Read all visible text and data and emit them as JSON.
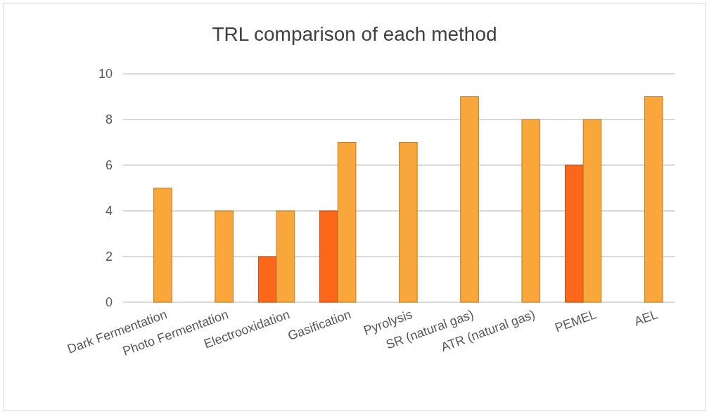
{
  "chart_data": {
    "type": "bar",
    "title": "TRL comparison of each method",
    "categories": [
      "Dark Fermentation",
      "Photo Fermentation",
      "Electrooxidation",
      "Gasification",
      "Pyrolysis",
      "SR (natural gas)",
      "ATR (natural gas)",
      "PEMEL",
      "AEL"
    ],
    "series": [
      {
        "color": "#fd6719",
        "values": [
          null,
          null,
          2,
          4,
          null,
          null,
          null,
          6,
          null
        ]
      },
      {
        "color": "#f9a73a",
        "values": [
          5,
          4,
          4,
          7,
          7,
          9,
          8,
          8,
          9
        ]
      }
    ],
    "ylim": [
      0,
      10
    ],
    "yticks": [
      0,
      2,
      4,
      6,
      8,
      10
    ],
    "grid": "y"
  }
}
